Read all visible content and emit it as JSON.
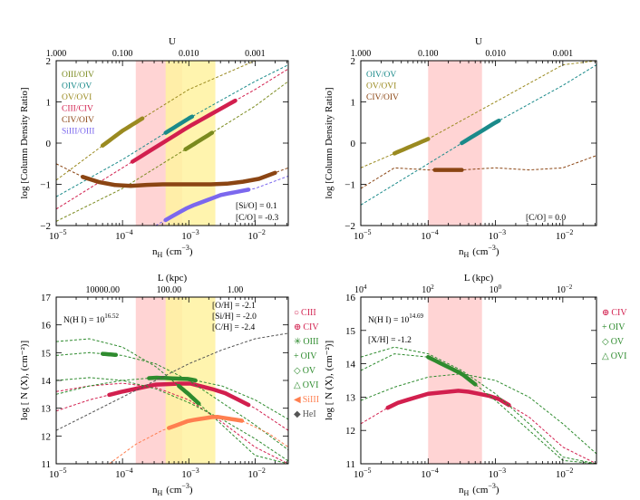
{
  "figure": {
    "panels": [
      {
        "id": "top-left",
        "x_label": "n",
        "x_label_sub": "H",
        "x_label_unit": "(cm",
        "x_label_unit_exp": "−3",
        "x_label_tail": ")",
        "y_label": "log [Column Density Ratio]",
        "top_axis_label": "U",
        "x_tick_base": "10",
        "x_tick_exps": [
          "−5",
          "−4",
          "−3",
          "−2"
        ],
        "x_tick_values": [
          -5,
          -4,
          -3,
          -2
        ],
        "top_tick_labels": [
          "1.000",
          "0.100",
          "0.010",
          "0.001"
        ],
        "top_tick_values": [
          -5,
          -4,
          -3,
          -2
        ],
        "y_tick_labels": [
          "2",
          "1",
          "0",
          "−1",
          "−2"
        ],
        "y_tick_values": [
          2,
          1,
          0,
          -1,
          -2
        ],
        "legend": [
          {
            "label": "OIII/OIV",
            "color": "#7a8a1e"
          },
          {
            "label": "OIV/OV",
            "color": "#1a8a8a"
          },
          {
            "label": "OV/OVI",
            "color": "#9a8a20"
          },
          {
            "label": "CIII/CIV",
            "color": "#d21f4e"
          },
          {
            "label": "CIV/OIV",
            "color": "#8b4513"
          },
          {
            "label": "SiIII/OIII",
            "color": "#7b68ee"
          }
        ],
        "annotations": [
          "[Si/O] = 0.1",
          "[C/O] = -0.3"
        ]
      },
      {
        "id": "top-right",
        "x_label": "n",
        "x_label_sub": "H",
        "x_label_unit": "(cm",
        "x_label_unit_exp": "−3",
        "x_label_tail": ")",
        "y_label": "log [Column Density Ratio]",
        "top_axis_label": "U",
        "x_tick_base": "10",
        "x_tick_exps": [
          "−5",
          "−4",
          "−3",
          "−2"
        ],
        "x_tick_values": [
          -5,
          -4,
          -3,
          -2
        ],
        "top_tick_labels": [
          "1.000",
          "0.100",
          "0.010",
          "0.001"
        ],
        "top_tick_values": [
          -5,
          -4,
          -3,
          -2
        ],
        "y_tick_labels": [
          "2",
          "1",
          "0",
          "−1",
          "−2"
        ],
        "y_tick_values": [
          2,
          1,
          0,
          -1,
          -2
        ],
        "legend": [
          {
            "label": "OIV/OV",
            "color": "#1a8a8a"
          },
          {
            "label": "OV/OVI",
            "color": "#9a8a20"
          },
          {
            "label": "CIV/OIV",
            "color": "#8b4513"
          }
        ],
        "annotations": [
          "[C/O] = 0.0"
        ]
      },
      {
        "id": "bottom-left",
        "x_label": "n",
        "x_label_sub": "H",
        "x_label_unit": "(cm",
        "x_label_unit_exp": "−3",
        "x_label_tail": ")",
        "y_label": "log [ N (X), (cm⁻²)]",
        "top_axis_label": "L (kpc)",
        "x_tick_base": "10",
        "x_tick_exps": [
          "−5",
          "−4",
          "−3",
          "−2"
        ],
        "x_tick_values": [
          -5,
          -4,
          -3,
          -2
        ],
        "top_tick_labels": [
          "10000.00",
          "100.00",
          "1.00"
        ],
        "top_tick_values": [
          -4.3,
          -3.3,
          -2.3
        ],
        "y_tick_labels": [
          "17",
          "16",
          "15",
          "14",
          "13",
          "12",
          "11"
        ],
        "y_tick_values": [
          17,
          16,
          15,
          14,
          13,
          12,
          11
        ],
        "nhi_text": "N(H I) = 10",
        "nhi_exp": "16.52",
        "abundance_lines": [
          "[O/H] = -2.1",
          "[Si/H] = -2.0",
          "[C/H] = -2.4"
        ],
        "ion_legend": [
          {
            "symbol": "○",
            "label": "CIII",
            "color": "#d21f4e"
          },
          {
            "symbol": "⊕",
            "label": "CIV",
            "color": "#d21f4e"
          },
          {
            "symbol": "✳",
            "label": "OIII",
            "color": "#2e8b2e"
          },
          {
            "symbol": "+",
            "label": "OIV",
            "color": "#2e8b2e"
          },
          {
            "symbol": "◇",
            "label": "OV",
            "color": "#2e8b2e"
          },
          {
            "symbol": "△",
            "label": "OVI",
            "color": "#2e8b2e"
          },
          {
            "symbol": "◀",
            "label": "SiIII",
            "color": "#ff7f50"
          },
          {
            "symbol": "◆",
            "label": "HeI",
            "color": "#555555"
          }
        ]
      },
      {
        "id": "bottom-right",
        "x_label": "n",
        "x_label_sub": "H",
        "x_label_unit": "(cm",
        "x_label_unit_exp": "−3",
        "x_label_tail": ")",
        "y_label": "log [ N (X), (cm⁻²)]",
        "top_axis_label": "L (kpc)",
        "x_tick_base": "10",
        "x_tick_exps": [
          "−5",
          "−4",
          "−3",
          "−2"
        ],
        "x_tick_values": [
          -5,
          -4,
          -3,
          -2
        ],
        "top_tick_labels": [
          {
            "base": "10",
            "exp": "4"
          },
          {
            "base": "10",
            "exp": "2"
          },
          {
            "base": "10",
            "exp": "0"
          },
          {
            "base": "10",
            "exp": "−2"
          }
        ],
        "top_tick_values": [
          -5,
          -4,
          -3,
          -2
        ],
        "y_tick_labels": [
          "16",
          "15",
          "14",
          "13",
          "12",
          "11"
        ],
        "y_tick_values": [
          16,
          15,
          14,
          13,
          12,
          11
        ],
        "nhi_text": "N(H I) = 10",
        "nhi_exp": "14.69",
        "abundance_lines": [
          "[X/H] = -1.2"
        ],
        "ion_legend": [
          {
            "symbol": "⊕",
            "label": "CIV",
            "color": "#d21f4e"
          },
          {
            "symbol": "+",
            "label": "OIV",
            "color": "#2e8b2e"
          },
          {
            "symbol": "◇",
            "label": "OV",
            "color": "#2e8b2e"
          },
          {
            "symbol": "△",
            "label": "OVI",
            "color": "#2e8b2e"
          }
        ]
      }
    ]
  },
  "chart_data": [
    {
      "type": "line",
      "panel": "top-left",
      "xlabel": "n_H (cm^-3)",
      "ylabel": "log [Column Density Ratio]",
      "xscale": "log",
      "xlim": [
        -5,
        -1.5
      ],
      "ylim": [
        -2,
        2
      ],
      "shaded_regions": [
        {
          "range": [
            -3.8,
            -3.1
          ],
          "color": "#ffcccc"
        },
        {
          "range": [
            -3.35,
            -2.6
          ],
          "color": "#fff2a0"
        }
      ],
      "series": [
        {
          "name": "OIII/OIV",
          "color": "#7a8a1e",
          "x": [
            -5,
            -4,
            -3,
            -2,
            -1.5
          ],
          "y": [
            -1.9,
            -1.1,
            -0.1,
            0.9,
            1.5
          ],
          "highlight": [
            -3.05,
            -2.65
          ]
        },
        {
          "name": "OIV/OV",
          "color": "#1a8a8a",
          "x": [
            -5,
            -4,
            -3,
            -2,
            -1.5
          ],
          "y": [
            -1.3,
            -0.4,
            0.6,
            1.5,
            1.9
          ],
          "highlight": [
            -3.35,
            -2.95
          ]
        },
        {
          "name": "OV/OVI",
          "color": "#9a8a20",
          "x": [
            -5,
            -4,
            -3,
            -2,
            -1.5
          ],
          "y": [
            -0.9,
            0.3,
            1.3,
            2.0,
            2.0
          ],
          "highlight": [
            -4.3,
            -3.7
          ]
        },
        {
          "name": "CIII/CIV",
          "color": "#d21f4e",
          "x": [
            -5,
            -4,
            -3,
            -2,
            -1.5
          ],
          "y": [
            -1.6,
            -0.6,
            0.4,
            1.3,
            1.8
          ],
          "highlight": [
            -3.85,
            -2.3
          ]
        },
        {
          "name": "CIV/OIV",
          "color": "#8b4513",
          "x": [
            -5,
            -4.5,
            -4,
            -3.5,
            -3,
            -2.5,
            -2,
            -1.5
          ],
          "y": [
            -0.5,
            -0.9,
            -1.05,
            -1.0,
            -1.0,
            -1.0,
            -0.9,
            -0.6
          ],
          "highlight": [
            -4.6,
            -1.7
          ]
        },
        {
          "name": "SiIII/OIII",
          "color": "#7b68ee",
          "x": [
            -3.5,
            -3,
            -2.5,
            -2,
            -1.5
          ],
          "y": [
            -2.0,
            -1.55,
            -1.25,
            -1.1,
            -0.8
          ],
          "highlight": [
            -3.35,
            -2.1
          ]
        }
      ]
    },
    {
      "type": "line",
      "panel": "top-right",
      "xlabel": "n_H (cm^-3)",
      "ylabel": "log [Column Density Ratio]",
      "xscale": "log",
      "xlim": [
        -5,
        -1.5
      ],
      "ylim": [
        -2,
        2
      ],
      "shaded_regions": [
        {
          "range": [
            -4,
            -3.2
          ],
          "color": "#ffcccc"
        }
      ],
      "series": [
        {
          "name": "OIV/OV",
          "color": "#1a8a8a",
          "x": [
            -5,
            -4,
            -3,
            -2,
            -1.5
          ],
          "y": [
            -1.5,
            -0.5,
            0.5,
            1.4,
            1.9
          ],
          "highlight": [
            -3.5,
            -2.95
          ]
        },
        {
          "name": "OV/OVI",
          "color": "#9a8a20",
          "x": [
            -5,
            -4,
            -3,
            -2,
            -1.5
          ],
          "y": [
            -0.6,
            0.1,
            1.0,
            1.9,
            2.0
          ],
          "highlight": [
            -4.5,
            -4.0
          ]
        },
        {
          "name": "CIV/OIV",
          "color": "#8b4513",
          "x": [
            -5,
            -4.5,
            -4,
            -3.5,
            -3,
            -2.5,
            -2,
            -1.5
          ],
          "y": [
            -1.1,
            -0.6,
            -0.65,
            -0.65,
            -0.6,
            -0.65,
            -0.6,
            -0.3
          ],
          "highlight": [
            -3.9,
            -3.5
          ]
        }
      ]
    },
    {
      "type": "line",
      "panel": "bottom-left",
      "xlabel": "n_H (cm^-3)",
      "ylabel": "log [N(X), cm^-2]",
      "xscale": "log",
      "xlim": [
        -5,
        -1.5
      ],
      "ylim": [
        11,
        17
      ],
      "shaded_regions": [
        {
          "range": [
            -3.8,
            -3.1
          ],
          "color": "#ffcccc"
        },
        {
          "range": [
            -3.35,
            -2.6
          ],
          "color": "#fff2a0"
        }
      ],
      "series": [
        {
          "name": "CIII",
          "color": "#d21f4e",
          "x": [
            -5,
            -4.5,
            -4,
            -3.5,
            -3,
            -2.5,
            -2,
            -1.5
          ],
          "y": [
            13.6,
            13.8,
            13.9,
            13.75,
            13.3,
            12.5,
            11.6,
            11.0
          ]
        },
        {
          "name": "CIV",
          "color": "#d21f4e",
          "x": [
            -5,
            -4.5,
            -4,
            -3.5,
            -3,
            -2.5,
            -2,
            -1.5
          ],
          "y": [
            12.9,
            13.3,
            13.6,
            13.85,
            13.9,
            13.6,
            13.0,
            12.2
          ],
          "highlight": [
            -4.2,
            -2.1
          ]
        },
        {
          "name": "OIII",
          "color": "#2e8b2e",
          "x": [
            -5,
            -4.5,
            -4,
            -3.5,
            -3,
            -2.5,
            -2,
            -1.5
          ],
          "y": [
            14.0,
            14.1,
            14.0,
            13.7,
            13.2,
            12.6,
            11.9,
            11.1
          ]
        },
        {
          "name": "OIV",
          "color": "#2e8b2e",
          "x": [
            -5,
            -4.5,
            -4,
            -3.5,
            -3,
            -2.5,
            -2,
            -1.5
          ],
          "y": [
            13.5,
            13.8,
            14.0,
            14.1,
            14.05,
            13.8,
            13.3,
            12.6
          ],
          "highlight": [
            -3.6,
            -2.9
          ]
        },
        {
          "name": "OV",
          "color": "#2e8b2e",
          "x": [
            -5,
            -4.5,
            -4,
            -3.5,
            -3,
            -2.5,
            -2,
            -1.5
          ],
          "y": [
            14.9,
            15.0,
            14.9,
            14.6,
            14.0,
            13.2,
            12.4,
            11.5
          ],
          "highlight": [
            -4.3,
            -4.1
          ]
        },
        {
          "name": "OVI",
          "color": "#2e8b2e",
          "x": [
            -5,
            -4.5,
            -4,
            -3.5,
            -3,
            -2.5,
            -2,
            -1.5
          ],
          "y": [
            15.4,
            15.5,
            15.2,
            14.5,
            13.5,
            12.4,
            11.3,
            11.0
          ],
          "highlight": [
            -3.15,
            -2.85
          ]
        },
        {
          "name": "SiIII",
          "color": "#ff7f50",
          "x": [
            -4.2,
            -3.8,
            -3.4,
            -3,
            -2.6,
            -2.2,
            -1.8,
            -1.5
          ],
          "y": [
            11.0,
            11.7,
            12.2,
            12.55,
            12.7,
            12.55,
            12.1,
            11.6
          ],
          "highlight": [
            -3.3,
            -2.2
          ]
        },
        {
          "name": "HeI",
          "color": "#555555",
          "x": [
            -5,
            -4.5,
            -4,
            -3.5,
            -3,
            -2.5,
            -2,
            -1.5
          ],
          "y": [
            12.2,
            12.8,
            13.4,
            14.0,
            14.6,
            15.1,
            15.5,
            15.7
          ]
        }
      ]
    },
    {
      "type": "line",
      "panel": "bottom-right",
      "xlabel": "n_H (cm^-3)",
      "ylabel": "log [N(X), cm^-2]",
      "xscale": "log",
      "xlim": [
        -5,
        -1.5
      ],
      "ylim": [
        11,
        16
      ],
      "shaded_regions": [
        {
          "range": [
            -4,
            -3.2
          ],
          "color": "#ffcccc"
        }
      ],
      "series": [
        {
          "name": "CIV",
          "color": "#d21f4e",
          "x": [
            -5,
            -4.5,
            -4,
            -3.5,
            -3,
            -2.5,
            -2,
            -1.5
          ],
          "y": [
            12.2,
            12.8,
            13.1,
            13.2,
            13.0,
            12.4,
            11.5,
            10.9
          ],
          "highlight": [
            -4.6,
            -2.8
          ]
        },
        {
          "name": "OIV",
          "color": "#2e8b2e",
          "x": [
            -5,
            -4.5,
            -4,
            -3.5,
            -3,
            -2.5,
            -2,
            -1.5
          ],
          "y": [
            12.9,
            13.3,
            13.6,
            13.7,
            13.5,
            13.0,
            12.2,
            11.3
          ]
        },
        {
          "name": "OV",
          "color": "#2e8b2e",
          "x": [
            -5,
            -4.5,
            -4,
            -3.5,
            -3,
            -2.5,
            -2,
            -1.5
          ],
          "y": [
            13.8,
            14.3,
            14.2,
            13.7,
            12.9,
            12.0,
            11.1,
            11.0
          ],
          "highlight": [
            -4,
            -3.3
          ]
        },
        {
          "name": "OVI",
          "color": "#2e8b2e",
          "x": [
            -5,
            -4.5,
            -4,
            -3.5,
            -3,
            -2.5,
            -2,
            -1.5
          ],
          "y": [
            14.2,
            14.5,
            14.3,
            13.8,
            13.1,
            12.2,
            11.2,
            11.0
          ]
        }
      ]
    }
  ]
}
